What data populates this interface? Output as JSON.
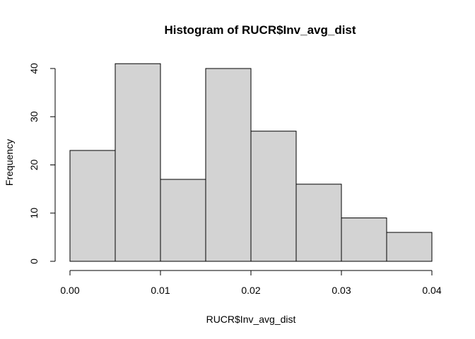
{
  "chart_data": {
    "type": "bar",
    "title": "Histogram of RUCR$Inv_avg_dist",
    "xlabel": "RUCR$Inv_avg_dist",
    "ylabel": "Frequency",
    "bins": [
      {
        "start": 0.0,
        "end": 0.005,
        "count": 23
      },
      {
        "start": 0.005,
        "end": 0.01,
        "count": 41
      },
      {
        "start": 0.01,
        "end": 0.015,
        "count": 17
      },
      {
        "start": 0.015,
        "end": 0.02,
        "count": 40
      },
      {
        "start": 0.02,
        "end": 0.025,
        "count": 27
      },
      {
        "start": 0.025,
        "end": 0.03,
        "count": 16
      },
      {
        "start": 0.03,
        "end": 0.035,
        "count": 9
      },
      {
        "start": 0.035,
        "end": 0.04,
        "count": 6
      }
    ],
    "xlim": [
      0,
      0.04
    ],
    "ylim": [
      0,
      41
    ],
    "x_ticks": [
      0.0,
      0.01,
      0.02,
      0.03,
      0.04
    ],
    "x_tick_labels": [
      "0.00",
      "0.01",
      "0.02",
      "0.03",
      "0.04"
    ],
    "y_ticks": [
      0,
      10,
      20,
      30,
      40
    ],
    "y_tick_labels": [
      "0",
      "10",
      "20",
      "30",
      "40"
    ],
    "bar_color": "#d3d3d3",
    "grid": false
  }
}
